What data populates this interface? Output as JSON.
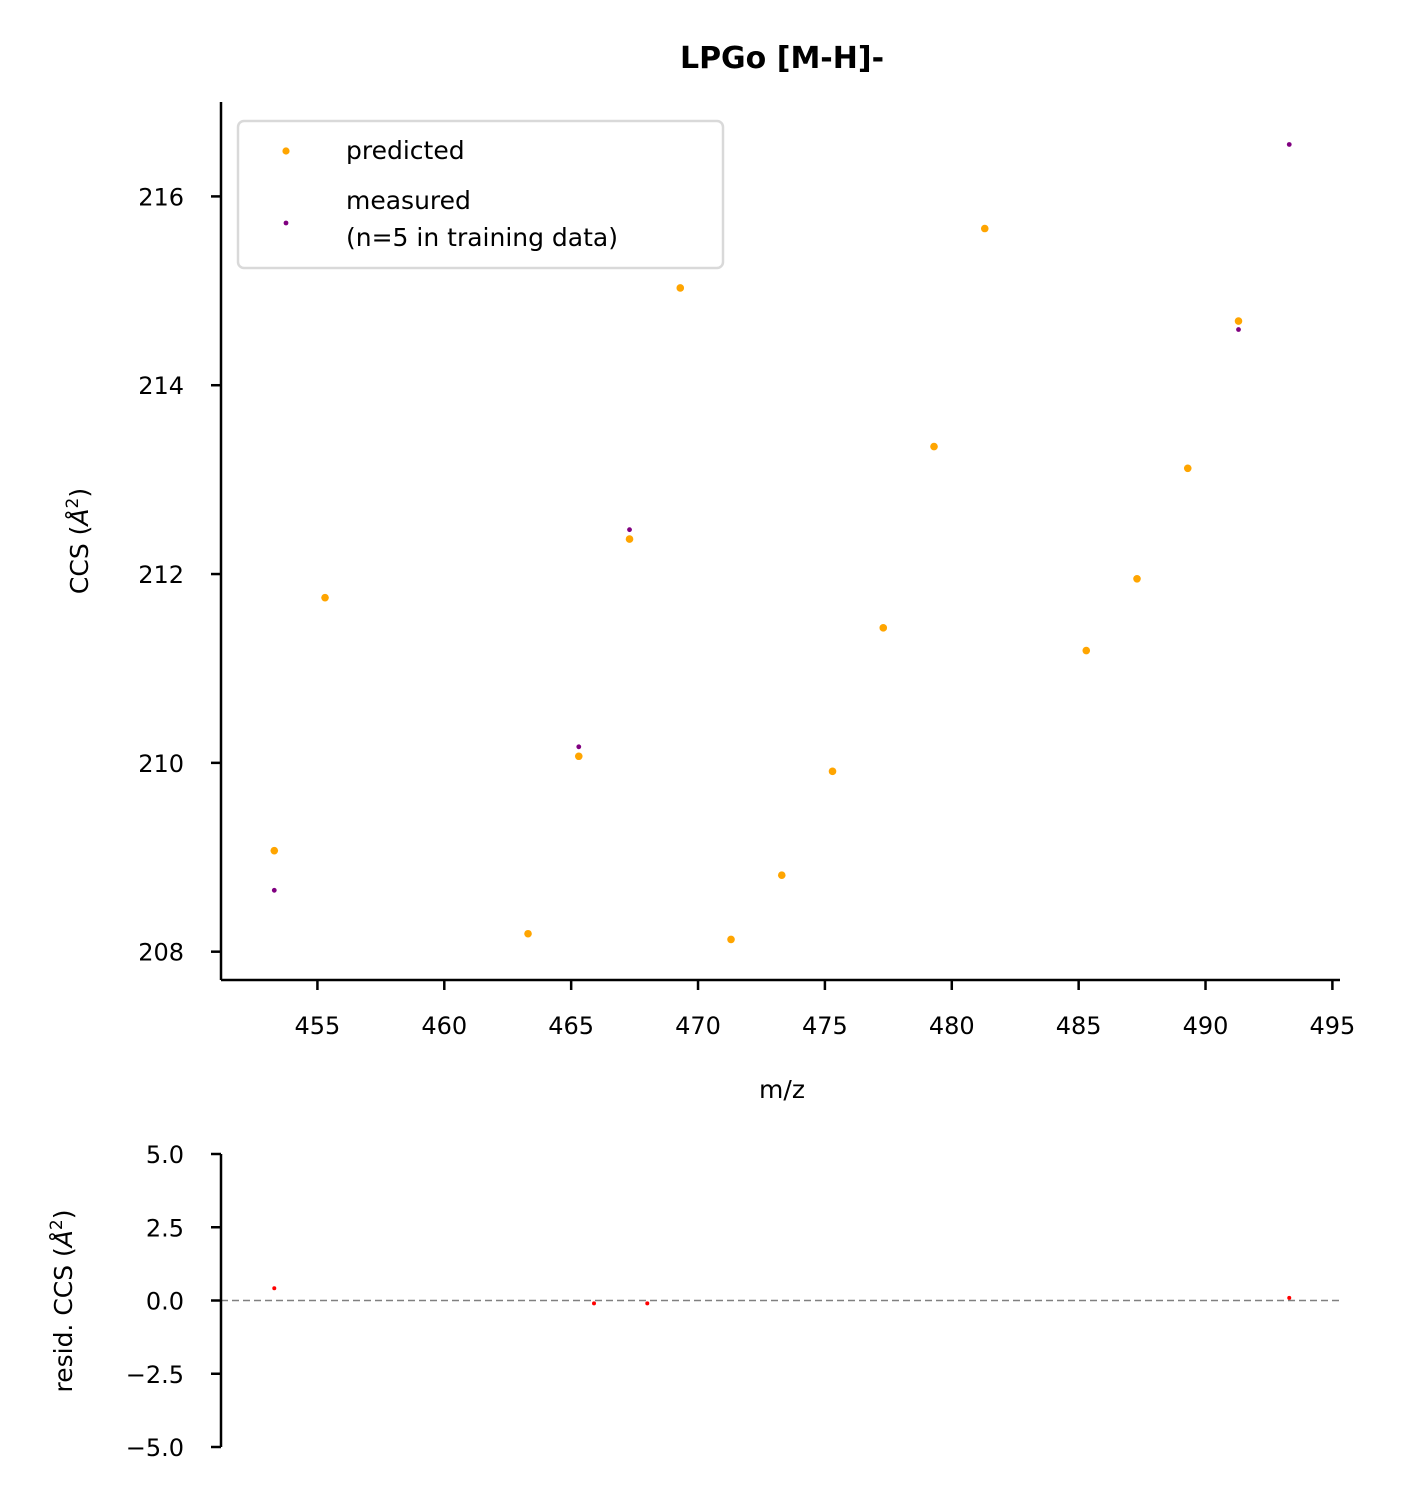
{
  "chart_data": [
    {
      "type": "scatter",
      "title": "LPGo [M-H]-",
      "xlabel": "m/z",
      "ylabel": "CCS (Å²)",
      "xlim": [
        451.2,
        495.3
      ],
      "ylim": [
        207.7,
        217.0
      ],
      "x_ticks": [
        455,
        460,
        465,
        470,
        475,
        480,
        485,
        490,
        495
      ],
      "y_ticks": [
        208,
        210,
        212,
        214,
        216
      ],
      "grid": false,
      "legend_position": "top-left",
      "series": [
        {
          "name": "predicted",
          "color": "#FFA500",
          "points": [
            {
              "x": 453.3,
              "y": 209.07
            },
            {
              "x": 455.3,
              "y": 211.75
            },
            {
              "x": 463.3,
              "y": 208.19
            },
            {
              "x": 465.3,
              "y": 210.07
            },
            {
              "x": 467.3,
              "y": 212.37
            },
            {
              "x": 469.3,
              "y": 215.03
            },
            {
              "x": 471.3,
              "y": 208.13
            },
            {
              "x": 473.3,
              "y": 208.81
            },
            {
              "x": 475.3,
              "y": 209.91
            },
            {
              "x": 477.3,
              "y": 211.43
            },
            {
              "x": 479.3,
              "y": 213.35
            },
            {
              "x": 481.3,
              "y": 215.66
            },
            {
              "x": 485.3,
              "y": 211.19
            },
            {
              "x": 487.3,
              "y": 211.95
            },
            {
              "x": 489.3,
              "y": 213.12
            },
            {
              "x": 491.3,
              "y": 214.68
            }
          ]
        },
        {
          "name": "measured\n(n=5 in training data)",
          "name_lines": [
            "measured",
            "(n=5 in training data)"
          ],
          "color": "#800080",
          "points": [
            {
              "x": 453.3,
              "y": 208.65
            },
            {
              "x": 465.3,
              "y": 210.17
            },
            {
              "x": 467.3,
              "y": 212.47
            },
            {
              "x": 491.3,
              "y": 214.59
            },
            {
              "x": 493.3,
              "y": 216.55
            }
          ]
        }
      ]
    },
    {
      "type": "scatter",
      "title": "",
      "xlabel": "",
      "ylabel": "resid. CCS (Å²)",
      "xlim": [
        451.2,
        495.3
      ],
      "ylim": [
        -5.0,
        5.0
      ],
      "y_ticks": [
        5.0,
        2.5,
        0.0,
        -2.5,
        -5.0
      ],
      "y_tick_labels": [
        "5.0",
        "2.5",
        "0.0",
        "−2.5",
        "−5.0"
      ],
      "zero_line": {
        "y": 0.0,
        "color": "#808080",
        "style": "dashed"
      },
      "series": [
        {
          "name": "",
          "color": "#FF0000",
          "points": [
            {
              "x": 453.3,
              "y": 0.42
            },
            {
              "x": 465.9,
              "y": -0.1
            },
            {
              "x": 468.0,
              "y": -0.1
            },
            {
              "x": 493.3,
              "y": 0.09
            }
          ]
        }
      ]
    }
  ]
}
